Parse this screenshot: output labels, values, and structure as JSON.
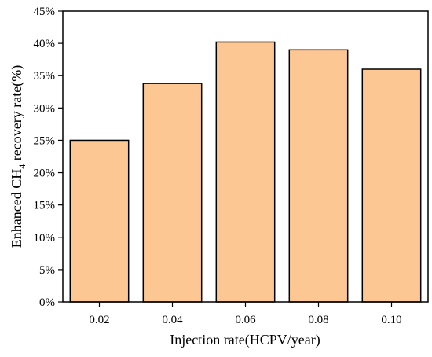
{
  "chart_data": {
    "type": "bar",
    "categories": [
      "0.02",
      "0.04",
      "0.06",
      "0.08",
      "0.10"
    ],
    "values": [
      25.0,
      33.8,
      40.2,
      39.0,
      36.0
    ],
    "xlabel": "Injection rate(HCPV/year)",
    "ylabel": {
      "prefix": "Enhanced CH",
      "subscript": "4",
      "suffix": " recovery rate(%)"
    },
    "ylim": [
      0,
      45
    ],
    "yticks": [
      0,
      5,
      10,
      15,
      20,
      25,
      30,
      35,
      40,
      45
    ],
    "ytick_labels": [
      "0%",
      "5%",
      "10%",
      "15%",
      "20%",
      "25%",
      "30%",
      "35%",
      "40%",
      "45%"
    ],
    "grid": false,
    "legend": "none",
    "colors": {
      "bar_fill": "#FDC794",
      "bar_edge": "#000000",
      "axis": "#000000"
    }
  }
}
